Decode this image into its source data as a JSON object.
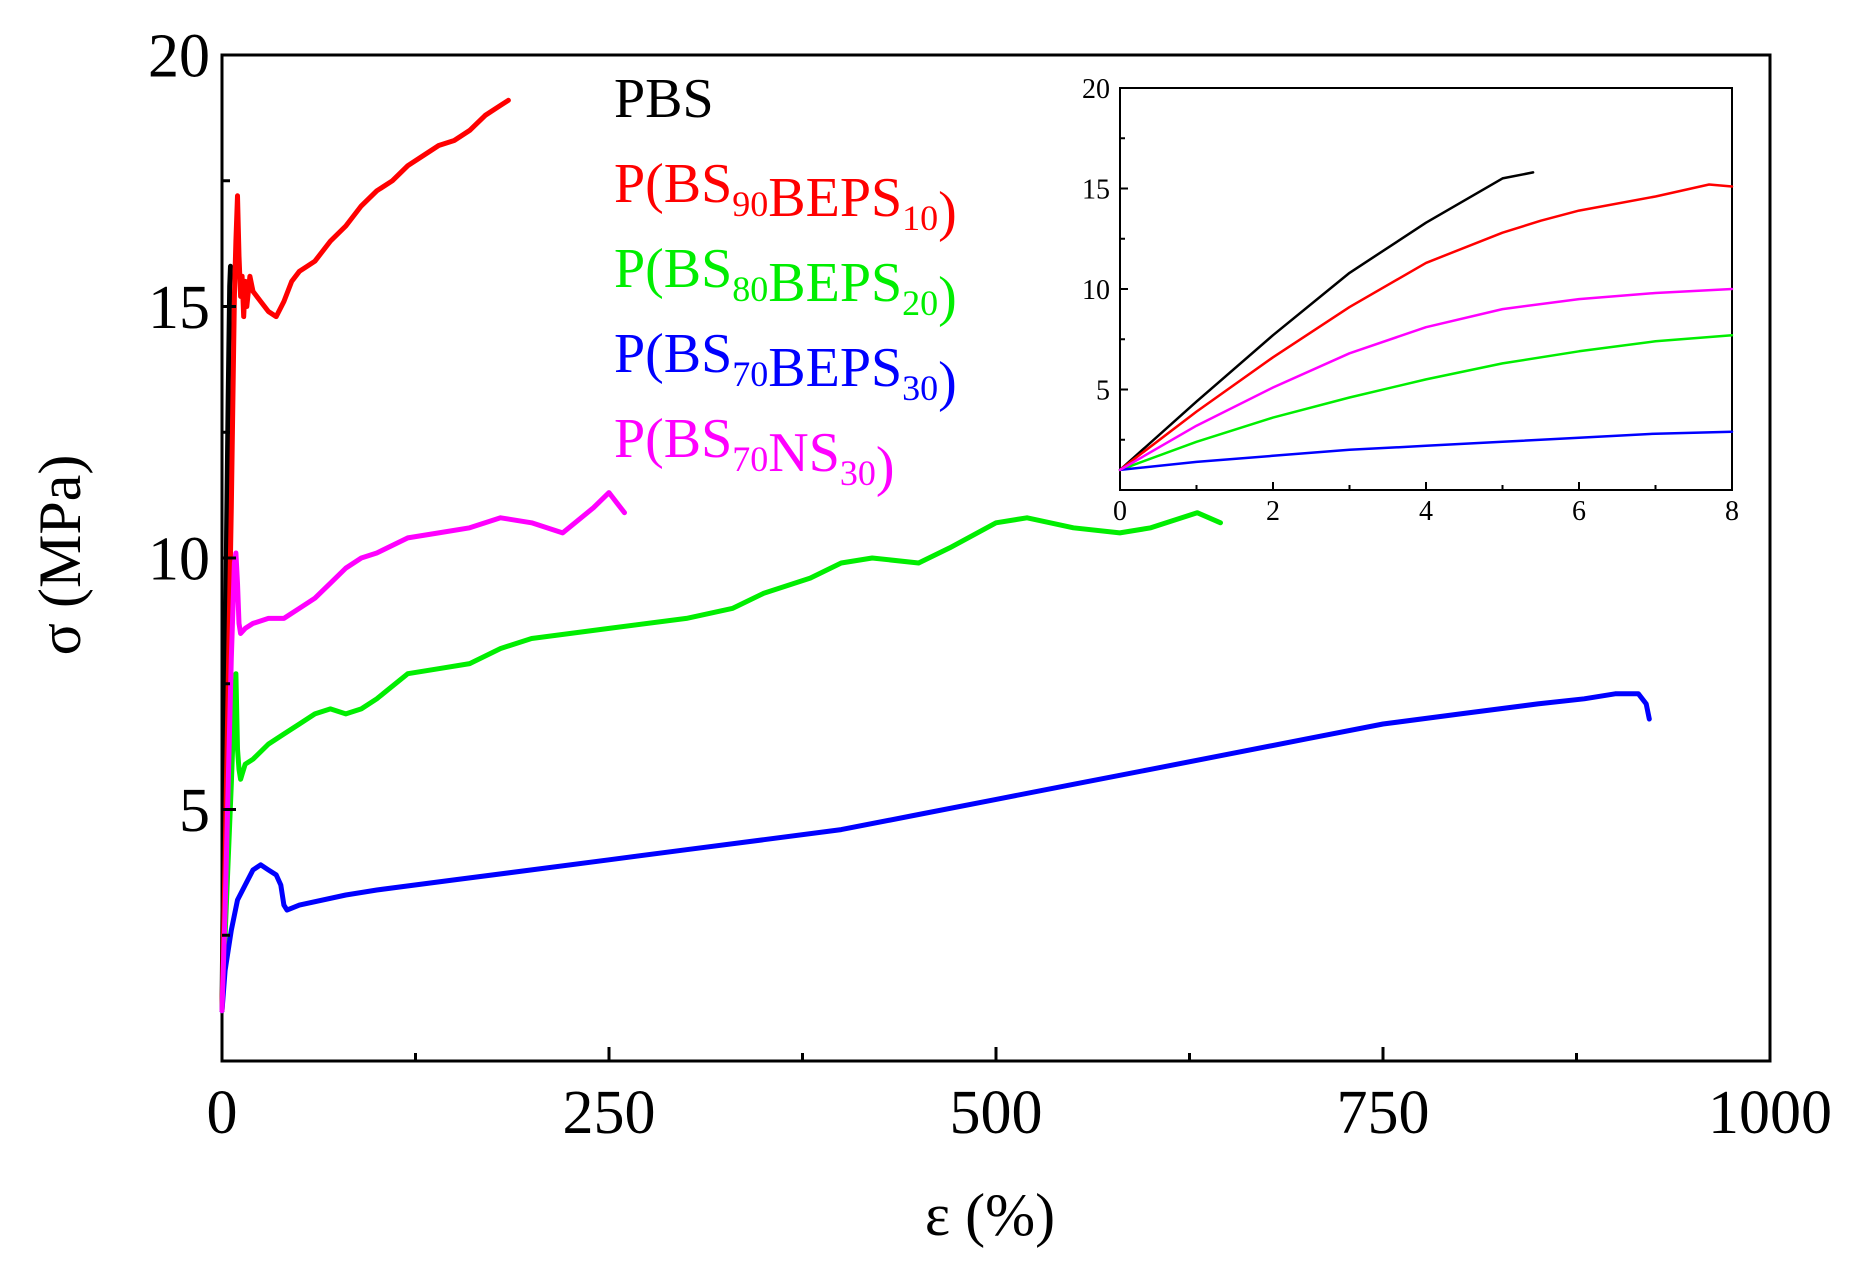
{
  "chart_data": {
    "type": "line",
    "main": {
      "xlabel": "ε (%)",
      "ylabel": "σ (MPa)",
      "xlim": [
        0,
        1000
      ],
      "ylim": [
        0,
        20
      ],
      "xticks": [
        0,
        250,
        500,
        750,
        1000
      ],
      "yticks": [
        5,
        10,
        15,
        20
      ],
      "xtick_labels": [
        "0",
        "250",
        "500",
        "750",
        "1000"
      ],
      "ytick_labels": [
        "5",
        "10",
        "15",
        "20"
      ],
      "legend_position": "top-center",
      "series": [
        {
          "name": "PBS",
          "color": "#000000",
          "x": [
            0,
            1,
            2,
            3,
            4,
            5,
            5.5
          ],
          "y": [
            1.0,
            4.0,
            7.0,
            10.5,
            13.2,
            15.4,
            15.8
          ]
        },
        {
          "name": "P(BS90BEPS10)",
          "color": "#ff0000",
          "x": [
            0,
            2,
            4,
            6,
            8,
            9,
            10,
            11,
            12,
            13,
            14,
            15,
            16,
            18,
            20,
            25,
            30,
            35,
            40,
            45,
            50,
            55,
            60,
            70,
            80,
            90,
            100,
            110,
            120,
            130,
            140,
            150,
            160,
            170,
            180,
            185
          ],
          "y": [
            1.0,
            4.0,
            7.5,
            11.0,
            15.2,
            16.3,
            17.2,
            16.0,
            15.2,
            15.6,
            14.8,
            15.5,
            15.0,
            15.6,
            15.3,
            15.1,
            14.9,
            14.8,
            15.1,
            15.5,
            15.7,
            15.8,
            15.9,
            16.3,
            16.6,
            17.0,
            17.3,
            17.5,
            17.8,
            18.0,
            18.2,
            18.3,
            18.5,
            18.8,
            19.0,
            19.1
          ]
        },
        {
          "name": "P(BS80BEPS20)",
          "color": "#00ee00",
          "x": [
            0,
            2,
            4,
            6,
            8,
            9,
            10,
            11,
            12,
            13,
            15,
            20,
            30,
            40,
            50,
            60,
            70,
            80,
            90,
            100,
            120,
            140,
            160,
            180,
            200,
            250,
            300,
            330,
            350,
            380,
            400,
            420,
            450,
            470,
            500,
            520,
            550,
            580,
            600,
            630,
            645
          ],
          "y": [
            1.0,
            2.5,
            4.0,
            5.5,
            7.2,
            7.7,
            6.2,
            5.8,
            5.6,
            5.7,
            5.9,
            6.0,
            6.3,
            6.5,
            6.7,
            6.9,
            7.0,
            6.9,
            7.0,
            7.2,
            7.7,
            7.8,
            7.9,
            8.2,
            8.4,
            8.6,
            8.8,
            9.0,
            9.3,
            9.6,
            9.9,
            10.0,
            9.9,
            10.2,
            10.7,
            10.8,
            10.6,
            10.5,
            10.6,
            10.9,
            10.7
          ]
        },
        {
          "name": "P(BS70BEPS30)",
          "color": "#0000ff",
          "x": [
            0,
            2,
            4,
            6,
            8,
            10,
            15,
            20,
            25,
            30,
            35,
            38,
            40,
            42,
            50,
            80,
            100,
            150,
            200,
            250,
            300,
            350,
            400,
            450,
            500,
            550,
            600,
            650,
            700,
            750,
            800,
            850,
            880,
            900,
            915,
            920,
            922
          ],
          "y": [
            1.0,
            1.8,
            2.2,
            2.6,
            2.9,
            3.2,
            3.5,
            3.8,
            3.9,
            3.8,
            3.7,
            3.5,
            3.1,
            3.0,
            3.1,
            3.3,
            3.4,
            3.6,
            3.8,
            4.0,
            4.2,
            4.4,
            4.6,
            4.9,
            5.2,
            5.5,
            5.8,
            6.1,
            6.4,
            6.7,
            6.9,
            7.1,
            7.2,
            7.3,
            7.3,
            7.1,
            6.8
          ]
        },
        {
          "name": "P(BS70NS30)",
          "color": "#ff00ff",
          "x": [
            0,
            2,
            4,
            6,
            8,
            9,
            10,
            11,
            12,
            15,
            20,
            30,
            40,
            50,
            60,
            70,
            80,
            90,
            100,
            120,
            140,
            160,
            180,
            200,
            220,
            240,
            250,
            255,
            260
          ],
          "y": [
            1.0,
            3.0,
            5.5,
            8.0,
            9.9,
            10.1,
            9.5,
            8.7,
            8.5,
            8.6,
            8.7,
            8.8,
            8.8,
            9.0,
            9.2,
            9.5,
            9.8,
            10.0,
            10.1,
            10.4,
            10.5,
            10.6,
            10.8,
            10.7,
            10.5,
            11.0,
            11.3,
            11.1,
            10.9
          ]
        }
      ]
    },
    "inset": {
      "xlim": [
        0,
        8
      ],
      "ylim": [
        0,
        20
      ],
      "xticks": [
        0,
        2,
        4,
        6,
        8
      ],
      "yticks": [
        5,
        10,
        15,
        20
      ],
      "xtick_labels": [
        "0",
        "2",
        "4",
        "6",
        "8"
      ],
      "ytick_labels": [
        "5",
        "10",
        "15",
        "20"
      ],
      "series": [
        {
          "name": "PBS",
          "color": "#000000",
          "x": [
            0,
            1,
            2,
            3,
            4,
            5,
            5.4
          ],
          "y": [
            1.0,
            4.4,
            7.7,
            10.8,
            13.3,
            15.5,
            15.8
          ]
        },
        {
          "name": "P(BS90BEPS10)",
          "color": "#ff0000",
          "x": [
            0,
            1,
            2,
            3,
            4,
            5,
            5.5,
            6,
            7,
            7.7,
            8
          ],
          "y": [
            1.0,
            3.9,
            6.6,
            9.1,
            11.3,
            12.8,
            13.4,
            13.9,
            14.6,
            15.2,
            15.1
          ]
        },
        {
          "name": "P(BS80BEPS20)",
          "color": "#00ee00",
          "x": [
            0,
            1,
            2,
            3,
            4,
            5,
            6,
            7,
            8
          ],
          "y": [
            1.0,
            2.4,
            3.6,
            4.6,
            5.5,
            6.3,
            6.9,
            7.4,
            7.7
          ]
        },
        {
          "name": "P(BS70BEPS30)",
          "color": "#0000ff",
          "x": [
            0,
            1,
            2,
            3,
            4,
            5,
            6,
            7,
            8
          ],
          "y": [
            1.0,
            1.4,
            1.7,
            2.0,
            2.2,
            2.4,
            2.6,
            2.8,
            2.9
          ]
        },
        {
          "name": "P(BS70NS30)",
          "color": "#ff00ff",
          "x": [
            0,
            1,
            2,
            3,
            4,
            5,
            6,
            7,
            8
          ],
          "y": [
            1.0,
            3.2,
            5.1,
            6.8,
            8.1,
            9.0,
            9.5,
            9.8,
            10.0
          ]
        }
      ]
    },
    "legend": [
      {
        "color": "#000000",
        "parts": [
          {
            "t": "PBS",
            "sub": false
          }
        ]
      },
      {
        "color": "#ff0000",
        "parts": [
          {
            "t": "P(BS",
            "sub": false
          },
          {
            "t": "90",
            "sub": true
          },
          {
            "t": "BEPS",
            "sub": false
          },
          {
            "t": "10",
            "sub": true
          },
          {
            "t": ")",
            "sub": false
          }
        ]
      },
      {
        "color": "#00ee00",
        "parts": [
          {
            "t": "P(BS",
            "sub": false
          },
          {
            "t": "80",
            "sub": true
          },
          {
            "t": "BEPS",
            "sub": false
          },
          {
            "t": "20",
            "sub": true
          },
          {
            "t": ")",
            "sub": false
          }
        ]
      },
      {
        "color": "#0000ff",
        "parts": [
          {
            "t": "P(BS",
            "sub": false
          },
          {
            "t": "70",
            "sub": true
          },
          {
            "t": "BEPS",
            "sub": false
          },
          {
            "t": "30",
            "sub": true
          },
          {
            "t": ")",
            "sub": false
          }
        ]
      },
      {
        "color": "#ff00ff",
        "parts": [
          {
            "t": "P(BS",
            "sub": false
          },
          {
            "t": "70",
            "sub": true
          },
          {
            "t": "NS",
            "sub": false
          },
          {
            "t": "30",
            "sub": true
          },
          {
            "t": ")",
            "sub": false
          }
        ]
      }
    ]
  }
}
